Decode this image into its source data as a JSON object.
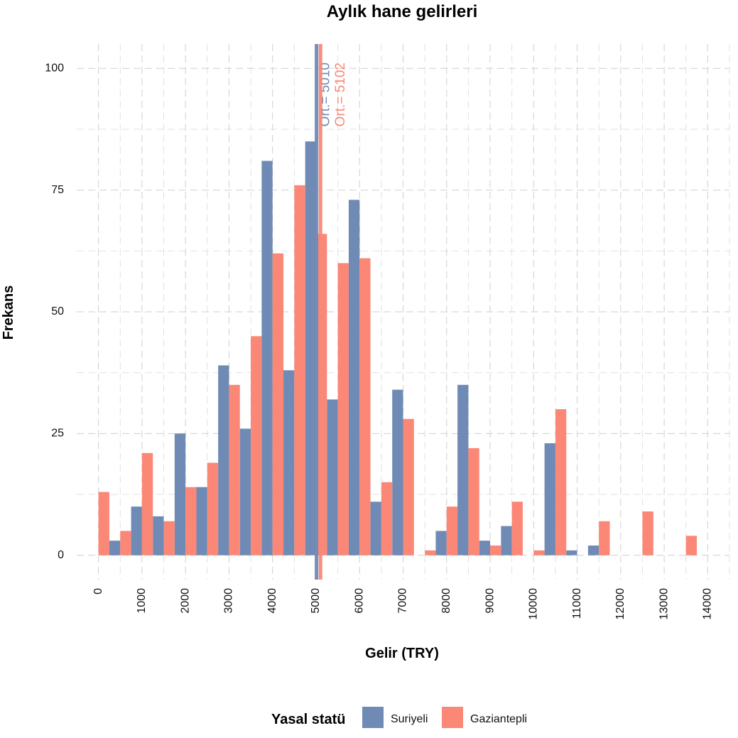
{
  "chart_data": {
    "type": "bar",
    "title": "Aylık hane gelirleri",
    "xlabel": "Gelir (TRY)",
    "ylabel": "Frekans",
    "xlim": [
      -500,
      14500
    ],
    "ylim": [
      -5,
      105
    ],
    "x_ticks": [
      "0",
      "1000",
      "2000",
      "3000",
      "4000",
      "5000",
      "6000",
      "7000",
      "8000",
      "9000",
      "10000",
      "11000",
      "12000",
      "13000",
      "14000"
    ],
    "y_ticks": [
      "0",
      "25",
      "50",
      "75",
      "100"
    ],
    "bin_width": 500,
    "bins": [
      0,
      500,
      1000,
      1500,
      2000,
      2500,
      3000,
      3500,
      4000,
      4500,
      5000,
      5500,
      6000,
      6500,
      7000,
      7500,
      8000,
      8500,
      9000,
      9500,
      10000,
      10500,
      11000,
      11500,
      12000,
      12500,
      13000,
      13500
    ],
    "series": [
      {
        "name": "Suriyeli",
        "color": "#6f8bb5",
        "values": [
          0,
          3,
          10,
          8,
          25,
          14,
          39,
          26,
          81,
          38,
          85,
          32,
          73,
          11,
          34,
          0,
          5,
          35,
          3,
          6,
          0,
          23,
          1,
          2,
          0,
          0,
          0,
          0
        ],
        "mean": 5010,
        "mean_label": "Ort.= 5010"
      },
      {
        "name": "Gaziantepli",
        "color": "#fb8776",
        "values": [
          13,
          5,
          21,
          7,
          14,
          19,
          35,
          45,
          62,
          76,
          66,
          60,
          61,
          15,
          28,
          1,
          10,
          22,
          2,
          11,
          1,
          30,
          0,
          7,
          0,
          9,
          0,
          4
        ],
        "mean": 5102,
        "mean_label": "Ort.= 5102"
      }
    ],
    "legend": {
      "title": "Yasal statü",
      "position": "bottom"
    },
    "grid": true
  }
}
